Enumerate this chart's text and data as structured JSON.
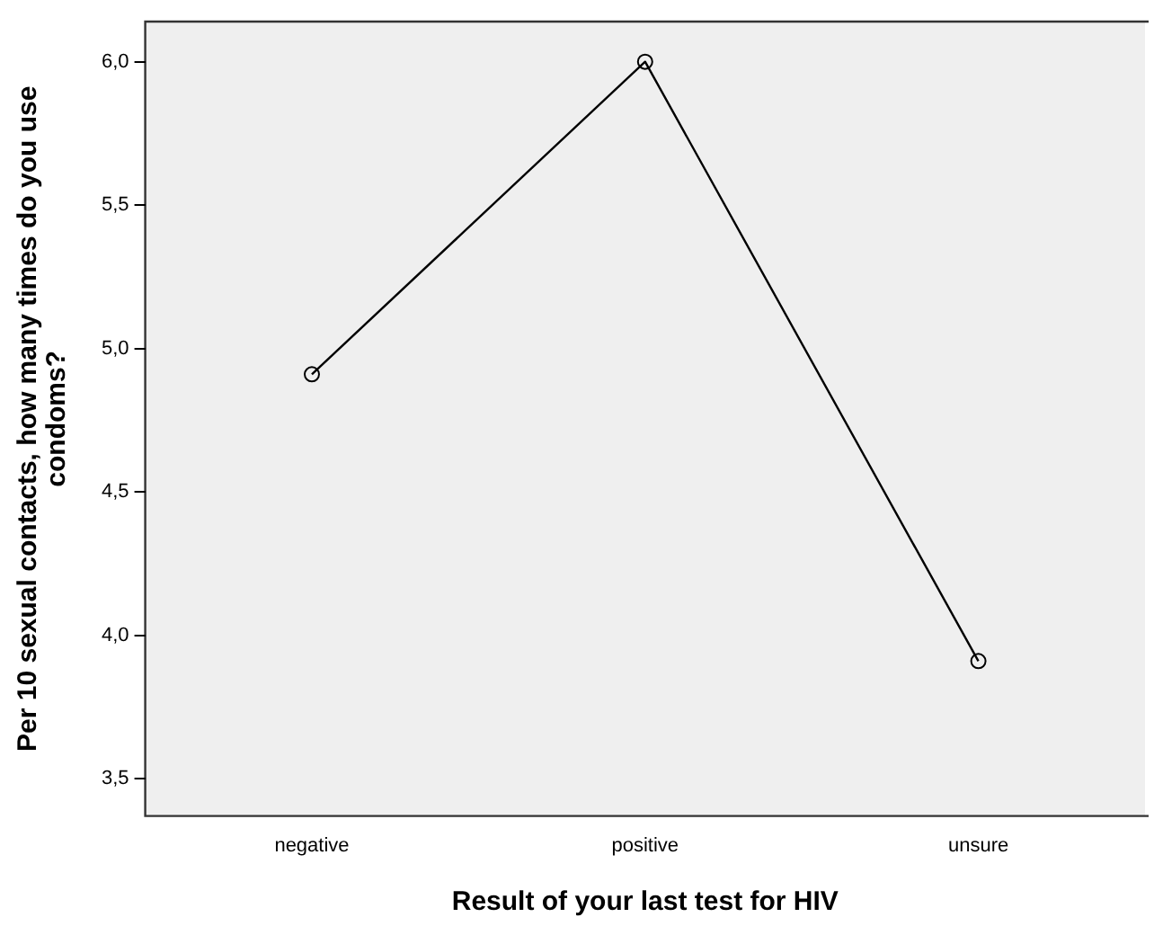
{
  "chart_data": {
    "type": "line",
    "xlabel": "Result of your last test for HIV",
    "ylabel": "Per 10 sexual contacts, how many times do you use\ncondoms?",
    "categories": [
      "negative",
      "positive",
      "unsure"
    ],
    "series": [
      {
        "color": "#000000",
        "values": [
          4.91,
          6.0,
          3.91
        ]
      }
    ],
    "ylim": [
      3.37,
      6.14
    ],
    "yticks": [
      {
        "value": 3.5,
        "label": "3,5"
      },
      {
        "value": 4.0,
        "label": "4,0"
      },
      {
        "value": 4.5,
        "label": "4,5"
      },
      {
        "value": 5.0,
        "label": "5,0"
      },
      {
        "value": 5.5,
        "label": "5,5"
      },
      {
        "value": 6.0,
        "label": "6,0"
      }
    ],
    "grid": false,
    "legend": false,
    "marker": "circle",
    "line_style": "solid"
  }
}
